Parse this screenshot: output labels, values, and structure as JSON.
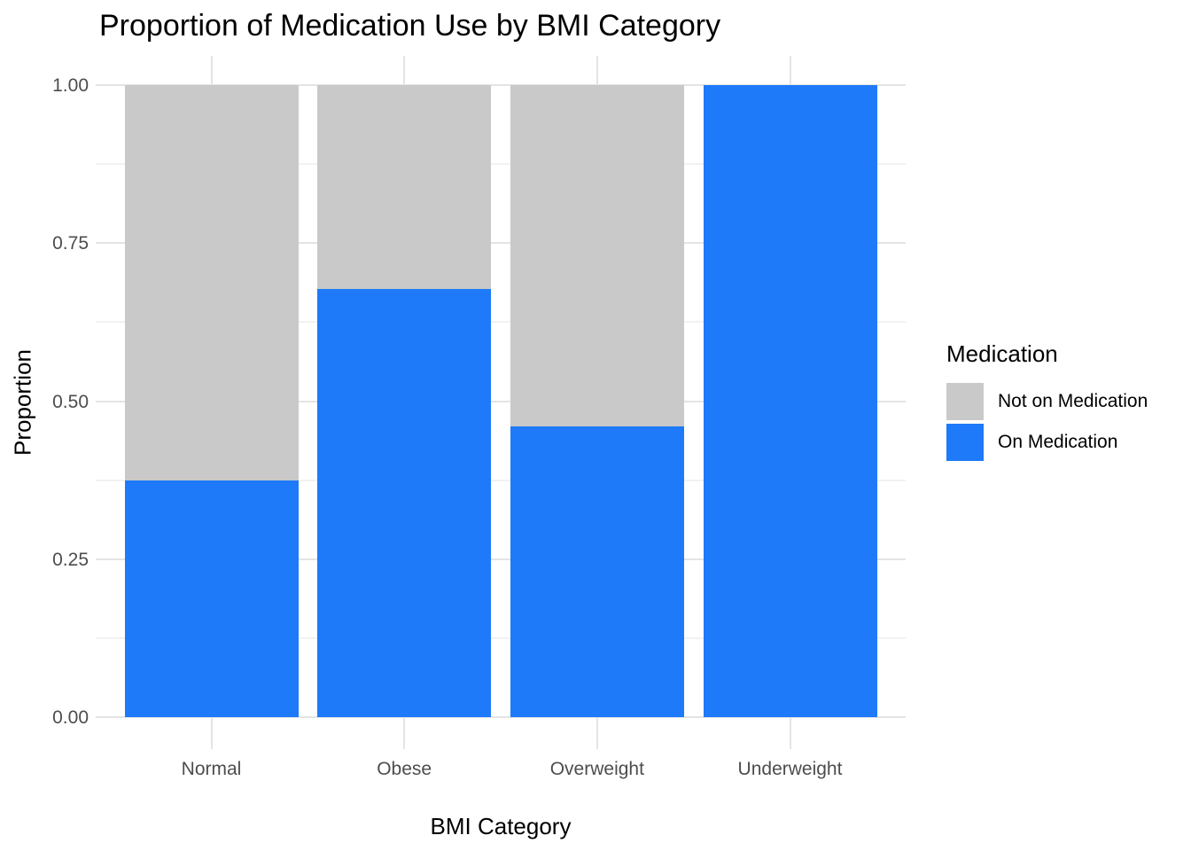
{
  "chart_data": {
    "type": "bar",
    "stacked": true,
    "title": "Proportion of Medication Use by BMI Category",
    "xlabel": "BMI Category",
    "ylabel": "Proportion",
    "categories": [
      "Normal",
      "Obese",
      "Overweight",
      "Underweight"
    ],
    "series": [
      {
        "name": "On Medication",
        "color": "#1E7AF8",
        "values": [
          0.375,
          0.677,
          0.46,
          1.0
        ]
      },
      {
        "name": "Not on Medication",
        "color": "#C9C9C9",
        "values": [
          0.625,
          0.323,
          0.54,
          0.0
        ]
      }
    ],
    "stack_order_bottom_to_top": [
      "On Medication",
      "Not on Medication"
    ],
    "ylim": [
      0,
      1
    ],
    "ytick_labels": [
      "0.00",
      "0.25",
      "0.50",
      "0.75",
      "1.00"
    ],
    "ytick_values": [
      0,
      0.25,
      0.5,
      0.75,
      1
    ],
    "minor_ytick_values": [
      0.125,
      0.375,
      0.625,
      0.875
    ],
    "grid": true,
    "legend": {
      "title": "Medication",
      "position": "right",
      "entries": [
        {
          "label": "Not on Medication",
          "color": "#C9C9C9"
        },
        {
          "label": "On Medication",
          "color": "#1E7AF8"
        }
      ]
    },
    "colors": {
      "background": "#FFFFFF",
      "grid_major": "#E4E4E4",
      "grid_minor": "#F2F2F2",
      "axis_text": "#4D4D4D",
      "text": "#000000"
    }
  }
}
